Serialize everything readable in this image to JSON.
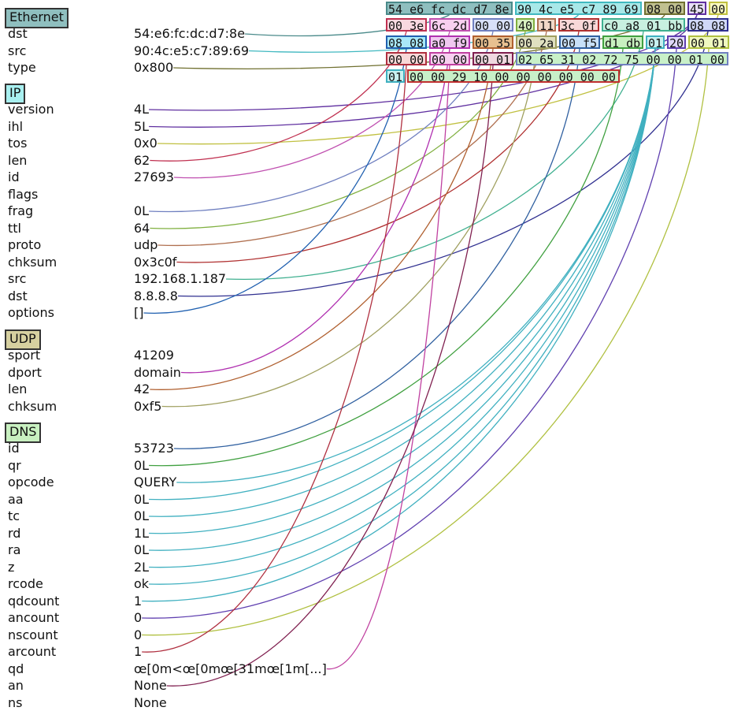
{
  "layers": [
    {
      "name": "Ethernet",
      "color": "#8fbfbf",
      "fields": [
        {
          "name": "dst",
          "value": "54:e6:fc:dc:d7:8e"
        },
        {
          "name": "src",
          "value": "90:4c:e5:c7:89:69"
        },
        {
          "name": "type",
          "value": "0x800"
        }
      ]
    },
    {
      "name": "IP",
      "color": "#a8f0f0",
      "fields": [
        {
          "name": "version",
          "value": "4L"
        },
        {
          "name": "ihl",
          "value": "5L"
        },
        {
          "name": "tos",
          "value": "0x0"
        },
        {
          "name": "len",
          "value": "62"
        },
        {
          "name": "id",
          "value": "27693"
        },
        {
          "name": "flags",
          "value": ""
        },
        {
          "name": "frag",
          "value": "0L"
        },
        {
          "name": "ttl",
          "value": "64"
        },
        {
          "name": "proto",
          "value": "udp"
        },
        {
          "name": "chksum",
          "value": "0x3c0f"
        },
        {
          "name": "src",
          "value": "192.168.1.187"
        },
        {
          "name": "dst",
          "value": "8.8.8.8"
        },
        {
          "name": "options",
          "value": "[]"
        }
      ]
    },
    {
      "name": "UDP",
      "color": "#d6d0a0",
      "fields": [
        {
          "name": "sport",
          "value": "41209"
        },
        {
          "name": "dport",
          "value": "domain"
        },
        {
          "name": "len",
          "value": "42"
        },
        {
          "name": "chksum",
          "value": "0xf5"
        }
      ]
    },
    {
      "name": "DNS",
      "color": "#c8f0c0",
      "fields": [
        {
          "name": "id",
          "value": "53723"
        },
        {
          "name": "qr",
          "value": "0L"
        },
        {
          "name": "opcode",
          "value": "QUERY"
        },
        {
          "name": "aa",
          "value": "0L"
        },
        {
          "name": "tc",
          "value": "0L"
        },
        {
          "name": "rd",
          "value": "1L"
        },
        {
          "name": "ra",
          "value": "0L"
        },
        {
          "name": "z",
          "value": "2L"
        },
        {
          "name": "rcode",
          "value": "ok"
        },
        {
          "name": "qdcount",
          "value": "1"
        },
        {
          "name": "ancount",
          "value": "0"
        },
        {
          "name": "nscount",
          "value": "0"
        },
        {
          "name": "arcount",
          "value": "1"
        },
        {
          "name": "qd",
          "value": "œ[0m<œ[0mœ[31mœ[1m[...]"
        },
        {
          "name": "an",
          "value": "None"
        },
        {
          "name": "ns",
          "value": "None"
        }
      ]
    }
  ],
  "hex_rows": [
    [
      {
        "text": "54 e6 fc dc d7 8e",
        "bg": "#8fbfbf",
        "border": "#4a8a8a"
      },
      {
        "text": "90 4c e5 c7 89 69",
        "bg": "#a8e8e8",
        "border": "#40b8c0"
      },
      {
        "text": "08 00",
        "bg": "#c0c090",
        "border": "#707030"
      },
      {
        "text": "45",
        "bg": "#e8e0f8",
        "border": "#6030a0"
      },
      {
        "text": "00",
        "bg": "#f8f8c0",
        "border": "#c0c040"
      }
    ],
    [
      {
        "text": "00 3e",
        "bg": "#f8d8e0",
        "border": "#c03050"
      },
      {
        "text": "6c 2d",
        "bg": "#f8d0f0",
        "border": "#c050b0"
      },
      {
        "text": "00 00",
        "bg": "#d8e0f8",
        "border": "#7080c0"
      },
      {
        "text": "40",
        "bg": "#d8f0c0",
        "border": "#80b040"
      },
      {
        "text": "11",
        "bg": "#f0d8c8",
        "border": "#b07050"
      },
      {
        "text": "3c 0f",
        "bg": "#f8d8d8",
        "border": "#b03030"
      },
      {
        "text": "c0 a8 01 bb",
        "bg": "#c8f0e0",
        "border": "#40b090"
      },
      {
        "text": "08 08",
        "bg": "#d0d8f8",
        "border": "#303090"
      }
    ],
    [
      {
        "text": "08 08",
        "bg": "#a8e8f8",
        "border": "#2060b0"
      },
      {
        "text": "a0 f9",
        "bg": "#f0c8f0",
        "border": "#b030b0"
      },
      {
        "text": "00 35",
        "bg": "#e8c090",
        "border": "#b06030"
      },
      {
        "text": "00 2a",
        "bg": "#e0e0c0",
        "border": "#a0a060"
      },
      {
        "text": "00 f5",
        "bg": "#c8e0f8",
        "border": "#3060a0"
      },
      {
        "text": "d1 db",
        "bg": "#c8f0c0",
        "border": "#40a040"
      },
      {
        "text": "01",
        "bg": "#c8f0f0",
        "border": "#40b0c0"
      },
      {
        "text": "20",
        "bg": "#e0d8f8",
        "border": "#6040b0"
      },
      {
        "text": "00 01",
        "bg": "#f0f8c0",
        "border": "#b0c040"
      }
    ],
    [
      {
        "text": "00 00",
        "bg": "#f8d8d8",
        "border": "#b03040"
      },
      {
        "text": "00 00",
        "bg": "#f8d0f0",
        "border": "#c040a0"
      },
      {
        "text": "00 01",
        "bg": "#f0d8e0",
        "border": "#802050"
      },
      {
        "text": "02 65 31 02 72 75 00 00 01 00",
        "bg": "#c8f0c8",
        "border": "#7080c0"
      }
    ],
    [
      {
        "text": "01",
        "bg": "#c8f0f0",
        "border": "#40b0c0"
      },
      {
        "text": "00 00 29 10 00 00 00 00 00 00",
        "bg": "#c8f0c8",
        "border": "#c03030"
      }
    ]
  ]
}
